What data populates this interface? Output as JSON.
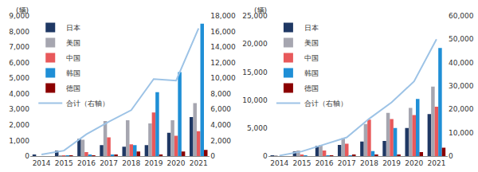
{
  "chart_data": [
    {
      "type": "bar",
      "y_label": "(辆)",
      "legend": "upper left",
      "grid": false,
      "categories": [
        "2014",
        "2015",
        "2016",
        "2017",
        "2018",
        "2019",
        "2020",
        "2021"
      ],
      "series": [
        {
          "name": "日本",
          "color": "#1f3864",
          "values": [
            100,
            350,
            1100,
            700,
            600,
            700,
            1500,
            2500
          ]
        },
        {
          "name": "美国",
          "color": "#a6a6b0",
          "values": [
            0,
            50,
            1050,
            2250,
            2300,
            2100,
            2300,
            3400
          ]
        },
        {
          "name": "中国",
          "color": "#e8595b",
          "values": [
            0,
            20,
            250,
            1200,
            750,
            2800,
            1300,
            1600
          ]
        },
        {
          "name": "韩国",
          "color": "#1f8fd6",
          "values": [
            0,
            10,
            100,
            100,
            700,
            4100,
            5400,
            8500
          ]
        },
        {
          "name": "德国",
          "color": "#8b0000",
          "values": [
            0,
            10,
            50,
            100,
            300,
            100,
            300,
            400
          ]
        },
        {
          "name": "合计（右轴）",
          "type": "line",
          "axis": "y2",
          "color": "#9dc3e6",
          "values": [
            200,
            700,
            2800,
            4400,
            5900,
            9900,
            9700,
            16400
          ]
        }
      ],
      "ylim": [
        0,
        9000
      ],
      "yticks": [
        0,
        {
          "value": 1000,
          "label": "1,000"
        },
        {
          "value": 2000,
          "label": "2,000"
        },
        {
          "value": 3000,
          "label": "3,000"
        },
        {
          "value": 4000,
          "label": "4,000"
        },
        {
          "value": 5000,
          "label": "5,000"
        },
        {
          "value": 6000,
          "label": "6,000"
        },
        {
          "value": 7000,
          "label": "7,000"
        },
        {
          "value": 8000,
          "label": "8,000"
        },
        {
          "value": 9000,
          "label": "9,000"
        }
      ],
      "y2lim": [
        0,
        18000
      ],
      "y2ticks": [
        0,
        {
          "value": 2000,
          "label": "2,000"
        },
        {
          "value": 4000,
          "label": "4,000"
        },
        {
          "value": 6000,
          "label": "6,000"
        },
        {
          "value": 8000,
          "label": "8,000"
        },
        {
          "value": 10000,
          "label": "10,000"
        },
        {
          "value": 12000,
          "label": "12,000"
        },
        {
          "value": 14000,
          "label": "14,000"
        },
        {
          "value": 16000,
          "label": "16,000"
        },
        {
          "value": 18000,
          "label": "18,000"
        }
      ]
    },
    {
      "type": "bar",
      "y_label": "(辆)",
      "legend": "upper left",
      "grid": false,
      "categories": [
        "2014",
        "2015",
        "2016",
        "2017",
        "2018",
        "2019",
        "2020",
        "2021"
      ],
      "series": [
        {
          "name": "日本",
          "color": "#1f3864",
          "values": [
            100,
            800,
            1800,
            2000,
            2600,
            2700,
            5000,
            7500
          ]
        },
        {
          "name": "美国",
          "color": "#a6a6b0",
          "values": [
            100,
            1000,
            2000,
            3200,
            5700,
            7700,
            8600,
            12400
          ]
        },
        {
          "name": "中国",
          "color": "#e8595b",
          "values": [
            0,
            200,
            1000,
            2200,
            6500,
            6600,
            7300,
            8800
          ]
        },
        {
          "name": "韩国",
          "color": "#1f8fd6",
          "values": [
            0,
            50,
            100,
            100,
            900,
            5000,
            10200,
            19300
          ]
        },
        {
          "name": "德国",
          "color": "#8b0000",
          "values": [
            0,
            0,
            50,
            200,
            300,
            300,
            700,
            1500
          ]
        },
        {
          "name": "合计（右轴）",
          "type": "line",
          "axis": "y2",
          "color": "#9dc3e6",
          "values": [
            200,
            2000,
            5000,
            8000,
            16000,
            23000,
            32000,
            50000
          ]
        }
      ],
      "ylim": [
        0,
        25000
      ],
      "yticks": [
        0,
        {
          "value": 5000,
          "label": "5,000"
        },
        {
          "value": 10000,
          "label": "10,000"
        },
        {
          "value": 15000,
          "label": "15,000"
        },
        {
          "value": 20000,
          "label": "20,000"
        },
        {
          "value": 25000,
          "label": "25,000"
        }
      ],
      "y2lim": [
        0,
        60000
      ],
      "y2ticks": [
        0,
        {
          "value": 10000,
          "label": "10,000"
        },
        {
          "value": 20000,
          "label": "20,000"
        },
        {
          "value": 30000,
          "label": "30,000"
        },
        {
          "value": 40000,
          "label": "40,000"
        },
        {
          "value": 50000,
          "label": "50,000"
        },
        {
          "value": 60000,
          "label": "60,000"
        }
      ]
    }
  ]
}
